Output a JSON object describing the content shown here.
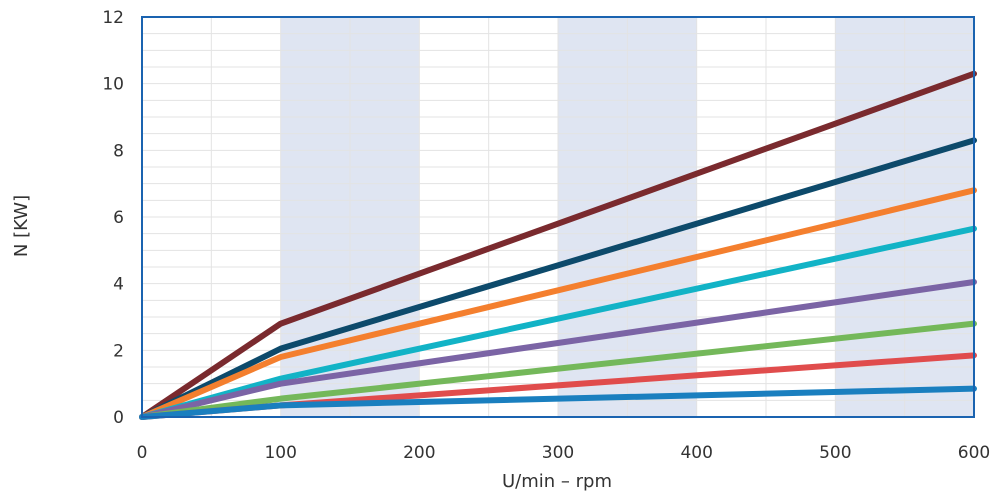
{
  "chart_data": {
    "type": "line",
    "title": "",
    "xlabel": "U/min – rpm",
    "ylabel": "N [KW]",
    "xlim": [
      0,
      600
    ],
    "ylim": [
      0,
      12
    ],
    "xticks": [
      0,
      100,
      200,
      300,
      400,
      500,
      600
    ],
    "yticks": [
      0,
      2,
      4,
      6,
      8,
      10,
      12
    ],
    "grid": true,
    "legend": "none",
    "shaded_bands": [
      [
        100,
        200
      ],
      [
        300,
        400
      ],
      [
        500,
        600
      ]
    ],
    "band_color": "#dfe5f2",
    "frame_color": "#1a63b0",
    "series": [
      {
        "color": "#7a2a2e",
        "x": [
          0,
          100,
          600
        ],
        "values": [
          0,
          2.8,
          10.3
        ]
      },
      {
        "color": "#0d4a6b",
        "x": [
          0,
          100,
          600
        ],
        "values": [
          0,
          2.05,
          8.3
        ]
      },
      {
        "color": "#f47f2e",
        "x": [
          0,
          100,
          600
        ],
        "values": [
          0,
          1.8,
          6.8
        ]
      },
      {
        "color": "#12b3c6",
        "x": [
          0,
          100,
          600
        ],
        "values": [
          0,
          1.15,
          5.65
        ]
      },
      {
        "color": "#7b64a5",
        "x": [
          0,
          100,
          600
        ],
        "values": [
          0,
          1.0,
          4.05
        ]
      },
      {
        "color": "#74b85a",
        "x": [
          0,
          100,
          600
        ],
        "values": [
          0,
          0.55,
          2.8
        ]
      },
      {
        "color": "#e04c4c",
        "x": [
          0,
          100,
          600
        ],
        "values": [
          0,
          0.35,
          1.85
        ]
      },
      {
        "color": "#1a7fbf",
        "x": [
          0,
          100,
          600
        ],
        "values": [
          0,
          0.35,
          0.85
        ]
      }
    ]
  }
}
